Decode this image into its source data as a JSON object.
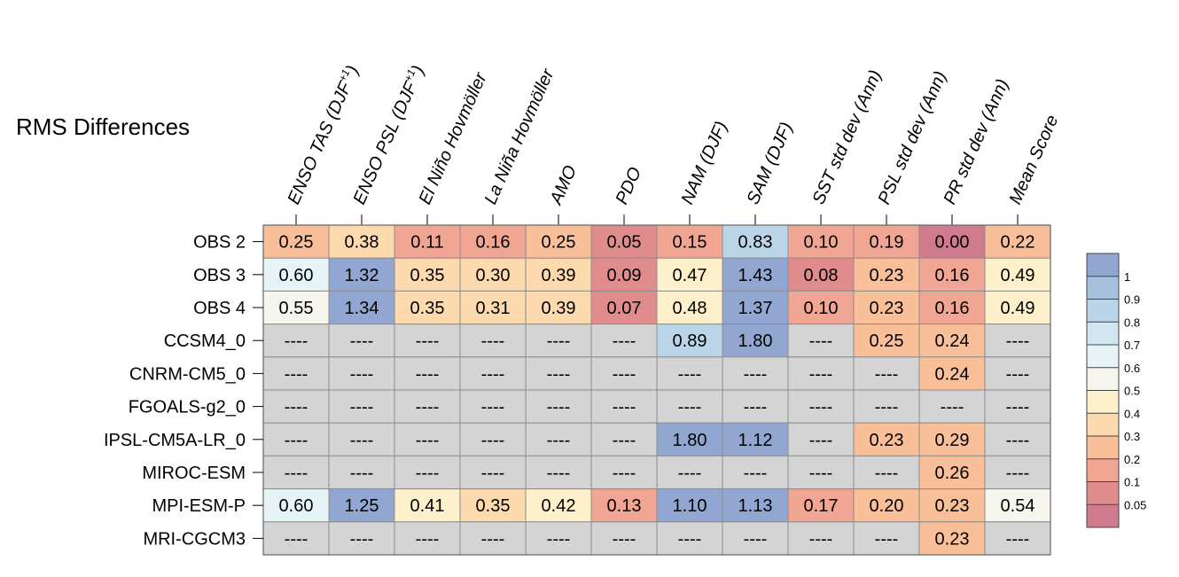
{
  "chart_data": {
    "type": "heatmap",
    "title": "RMS Differences",
    "columns": [
      {
        "label": "ENSO TAS (DJF",
        "sup": "+1",
        "close": ")"
      },
      {
        "label": "ENSO PSL (DJF",
        "sup": "+1",
        "close": ")"
      },
      {
        "label": "El Niño Hovmöller"
      },
      {
        "label": "La Niña Hovmöller"
      },
      {
        "label": "AMO"
      },
      {
        "label": "PDO"
      },
      {
        "label": "NAM (DJF)"
      },
      {
        "label": "SAM (DJF)"
      },
      {
        "label": "SST std dev (Ann)"
      },
      {
        "label": "PSL std dev (Ann)"
      },
      {
        "label": "PR std dev (Ann)"
      },
      {
        "label": "Mean Score"
      }
    ],
    "rows": [
      "OBS 2",
      "OBS 3",
      "OBS 4",
      "CCSM4_0",
      "CNRM-CM5_0",
      "FGOALS-g2_0",
      "IPSL-CM5A-LR_0",
      "MIROC-ESM",
      "MPI-ESM-P",
      "MRI-CGCM3"
    ],
    "values": [
      [
        0.25,
        0.38,
        0.11,
        0.16,
        0.25,
        0.05,
        0.15,
        0.83,
        0.1,
        0.19,
        0.0,
        0.22
      ],
      [
        0.6,
        1.32,
        0.35,
        0.3,
        0.39,
        0.09,
        0.47,
        1.43,
        0.08,
        0.23,
        0.16,
        0.49
      ],
      [
        0.55,
        1.34,
        0.35,
        0.31,
        0.39,
        0.07,
        0.48,
        1.37,
        0.1,
        0.23,
        0.16,
        0.49
      ],
      [
        null,
        null,
        null,
        null,
        null,
        null,
        0.89,
        1.8,
        null,
        0.25,
        0.24,
        null
      ],
      [
        null,
        null,
        null,
        null,
        null,
        null,
        null,
        null,
        null,
        null,
        0.24,
        null
      ],
      [
        null,
        null,
        null,
        null,
        null,
        null,
        null,
        null,
        null,
        null,
        null,
        null
      ],
      [
        null,
        null,
        null,
        null,
        null,
        null,
        1.8,
        1.12,
        null,
        0.23,
        0.29,
        null
      ],
      [
        null,
        null,
        null,
        null,
        null,
        null,
        null,
        null,
        null,
        null,
        0.26,
        null
      ],
      [
        0.6,
        1.25,
        0.41,
        0.35,
        0.42,
        0.13,
        1.1,
        1.13,
        0.17,
        0.2,
        0.23,
        0.54
      ],
      [
        null,
        null,
        null,
        null,
        null,
        null,
        null,
        null,
        null,
        null,
        0.23,
        null
      ]
    ],
    "missing_label": "----",
    "missing_color": "#d4d4d4",
    "colorbar": {
      "labels": [
        "1",
        "0.9",
        "0.8",
        "0.7",
        "0.6",
        "0.5",
        "0.4",
        "0.3",
        "0.2",
        "0.1",
        "0.05"
      ],
      "bins": [
        {
          "min": 1.0,
          "max": null,
          "color": "#91a7d2"
        },
        {
          "min": 0.9,
          "max": 1.0,
          "color": "#a5bfdc"
        },
        {
          "min": 0.8,
          "max": 0.9,
          "color": "#bbd5e8"
        },
        {
          "min": 0.7,
          "max": 0.8,
          "color": "#d1e6f1"
        },
        {
          "min": 0.6,
          "max": 0.7,
          "color": "#e6f3f7"
        },
        {
          "min": 0.5,
          "max": 0.6,
          "color": "#f6f6ee"
        },
        {
          "min": 0.4,
          "max": 0.5,
          "color": "#fdf0cb"
        },
        {
          "min": 0.3,
          "max": 0.4,
          "color": "#fdd9ae"
        },
        {
          "min": 0.2,
          "max": 0.3,
          "color": "#f9bf99"
        },
        {
          "min": 0.1,
          "max": 0.2,
          "color": "#f1a593"
        },
        {
          "min": 0.05,
          "max": 0.1,
          "color": "#e08c8c"
        },
        {
          "min": null,
          "max": 0.05,
          "color": "#d07b8d"
        }
      ]
    }
  }
}
